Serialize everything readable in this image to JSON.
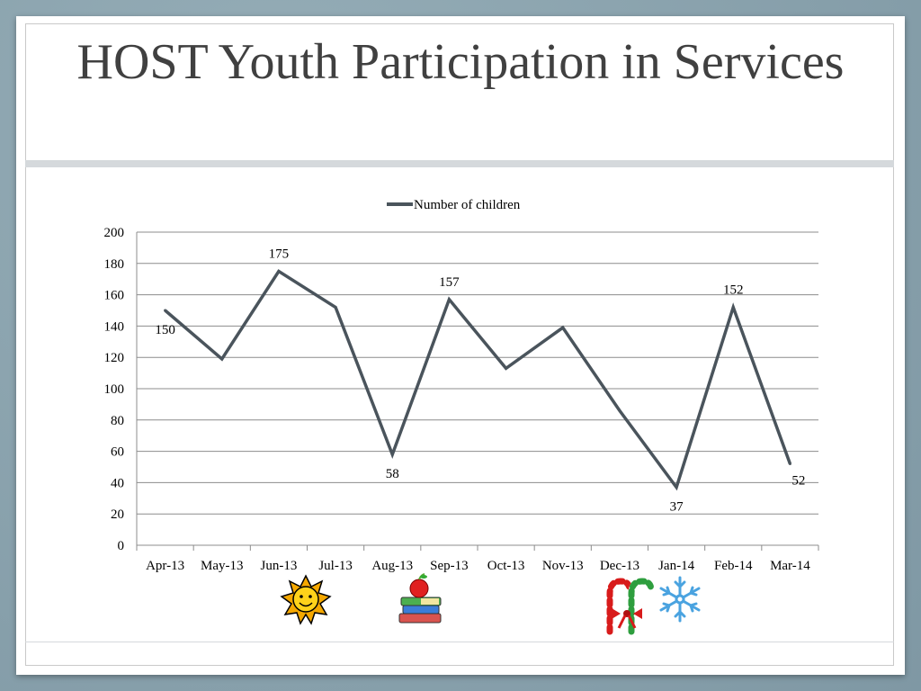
{
  "slide": {
    "title": "HOST Youth Participation in Services"
  },
  "chart_data": {
    "type": "line",
    "title": "",
    "xlabel": "",
    "ylabel": "",
    "categories": [
      "Apr-13",
      "May-13",
      "Jun-13",
      "Jul-13",
      "Aug-13",
      "Sep-13",
      "Oct-13",
      "Nov-13",
      "Dec-13",
      "Jan-14",
      "Feb-14",
      "Mar-14"
    ],
    "series": [
      {
        "name": "Number of children",
        "values": [
          150,
          119,
          175,
          152,
          58,
          157,
          113,
          139,
          86,
          37,
          152,
          52
        ],
        "color": "#4a545c"
      }
    ],
    "data_labels": [
      {
        "index": 0,
        "text": "150",
        "position": "below"
      },
      {
        "index": 2,
        "text": "175",
        "position": "above"
      },
      {
        "index": 4,
        "text": "58",
        "position": "below"
      },
      {
        "index": 5,
        "text": "157",
        "position": "above"
      },
      {
        "index": 9,
        "text": "37",
        "position": "below"
      },
      {
        "index": 10,
        "text": "152",
        "position": "above"
      },
      {
        "index": 11,
        "text": "52",
        "position": "right"
      }
    ],
    "ylim": [
      0,
      200
    ],
    "yticks": [
      0,
      20,
      40,
      60,
      80,
      100,
      120,
      140,
      160,
      180,
      200
    ],
    "grid": true,
    "legend": "top-center"
  },
  "decorations": [
    {
      "icon": "sun-icon",
      "category": "Jun-13"
    },
    {
      "icon": "apple-books-icon",
      "category": "Aug-13 / Sep-13"
    },
    {
      "icon": "candy-canes-icon",
      "category": "Dec-13"
    },
    {
      "icon": "snowflake-icon",
      "category": "Jan-14"
    }
  ]
}
